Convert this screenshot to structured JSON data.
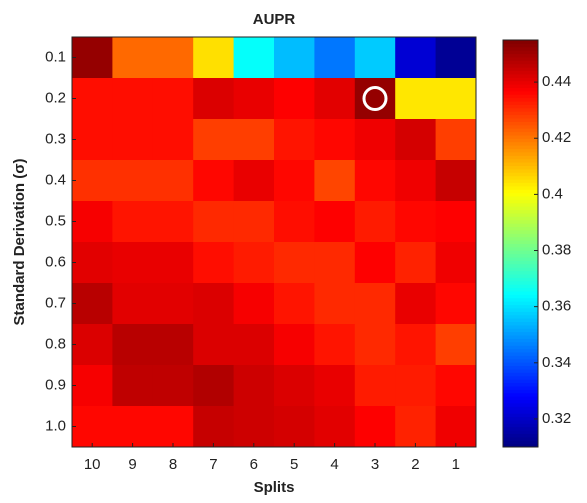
{
  "chart_data": {
    "type": "heatmap",
    "title": "AUPR",
    "xlabel": "Splits",
    "ylabel": "Standard Derivation (σ)",
    "x": [
      "10",
      "9",
      "8",
      "7",
      "6",
      "5",
      "4",
      "3",
      "2",
      "1"
    ],
    "y": [
      "0.1",
      "0.2",
      "0.3",
      "0.4",
      "0.5",
      "0.6",
      "0.7",
      "0.8",
      "0.9",
      "1.0"
    ],
    "values": [
      [
        0.452,
        0.422,
        0.422,
        0.405,
        0.365,
        0.355,
        0.345,
        0.357,
        0.322,
        0.313
      ],
      [
        0.435,
        0.435,
        0.435,
        0.442,
        0.44,
        0.437,
        0.441,
        0.452,
        0.404,
        0.404
      ],
      [
        0.435,
        0.435,
        0.435,
        0.428,
        0.428,
        0.434,
        0.436,
        0.439,
        0.443,
        0.428
      ],
      [
        0.43,
        0.43,
        0.43,
        0.436,
        0.44,
        0.436,
        0.427,
        0.436,
        0.439,
        0.445
      ],
      [
        0.438,
        0.434,
        0.434,
        0.431,
        0.431,
        0.435,
        0.437,
        0.433,
        0.436,
        0.437
      ],
      [
        0.441,
        0.44,
        0.44,
        0.435,
        0.433,
        0.431,
        0.431,
        0.437,
        0.432,
        0.439
      ],
      [
        0.447,
        0.441,
        0.441,
        0.442,
        0.438,
        0.434,
        0.431,
        0.431,
        0.44,
        0.436
      ],
      [
        0.442,
        0.447,
        0.447,
        0.442,
        0.442,
        0.438,
        0.434,
        0.431,
        0.434,
        0.428
      ],
      [
        0.438,
        0.446,
        0.446,
        0.448,
        0.444,
        0.442,
        0.44,
        0.433,
        0.433,
        0.436
      ],
      [
        0.436,
        0.436,
        0.436,
        0.445,
        0.444,
        0.443,
        0.441,
        0.437,
        0.432,
        0.439
      ]
    ],
    "colormap": "jet",
    "clim": [
      0.31,
      0.455
    ],
    "cticks": [
      0.32,
      0.34,
      0.36,
      0.38,
      0.4,
      0.42,
      0.44
    ],
    "highlight": {
      "x": "3",
      "y": "0.2"
    }
  }
}
